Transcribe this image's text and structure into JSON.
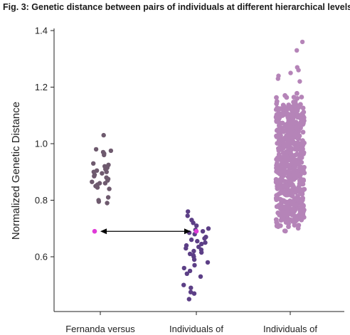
{
  "figure": {
    "title": "Fig. 3: Genetic distance between pairs of individuals at different hierarchical levels."
  },
  "chart_data": {
    "type": "scatter",
    "ylabel": "Normalized Genetic Distance",
    "ylim": [
      0.4,
      1.4
    ],
    "yticks": [
      "0.6",
      "0.8",
      "1.0",
      "1.2",
      "1.4"
    ],
    "categories": [
      "Fernanda versus",
      "Individuals of",
      "Individuals of"
    ],
    "colors": {
      "group1": "#6e5a6e",
      "group2": "#5c3f86",
      "group3": "#b584b8",
      "highlight": "#e03ad8",
      "arrow": "#000000"
    },
    "series": [
      {
        "values": [
          1.03,
          0.98,
          0.97,
          0.975,
          0.965,
          0.96,
          0.93,
          0.925,
          0.92,
          0.915,
          0.91,
          0.905,
          0.9,
          0.9,
          0.895,
          0.89,
          0.885,
          0.88,
          0.875,
          0.87,
          0.865,
          0.86,
          0.86,
          0.855,
          0.85,
          0.845,
          0.84,
          0.81,
          0.8,
          0.795,
          0.79
        ]
      },
      {
        "values": [
          0.76,
          0.745,
          0.73,
          0.72,
          0.71,
          0.7,
          0.695,
          0.69,
          0.685,
          0.68,
          0.67,
          0.665,
          0.66,
          0.655,
          0.65,
          0.645,
          0.64,
          0.635,
          0.63,
          0.625,
          0.62,
          0.615,
          0.61,
          0.605,
          0.6,
          0.59,
          0.58,
          0.57,
          0.56,
          0.55,
          0.54,
          0.53,
          0.5,
          0.49,
          0.475,
          0.47,
          0.45
        ]
      },
      {
        "min": 0.69,
        "max": 1.36,
        "count": 600,
        "outliers": [
          1.36,
          1.33,
          1.27,
          1.26,
          1.25,
          1.24,
          1.23,
          1.22
        ]
      }
    ],
    "highlight": {
      "value": 0.69,
      "groups": [
        0,
        1
      ]
    }
  }
}
